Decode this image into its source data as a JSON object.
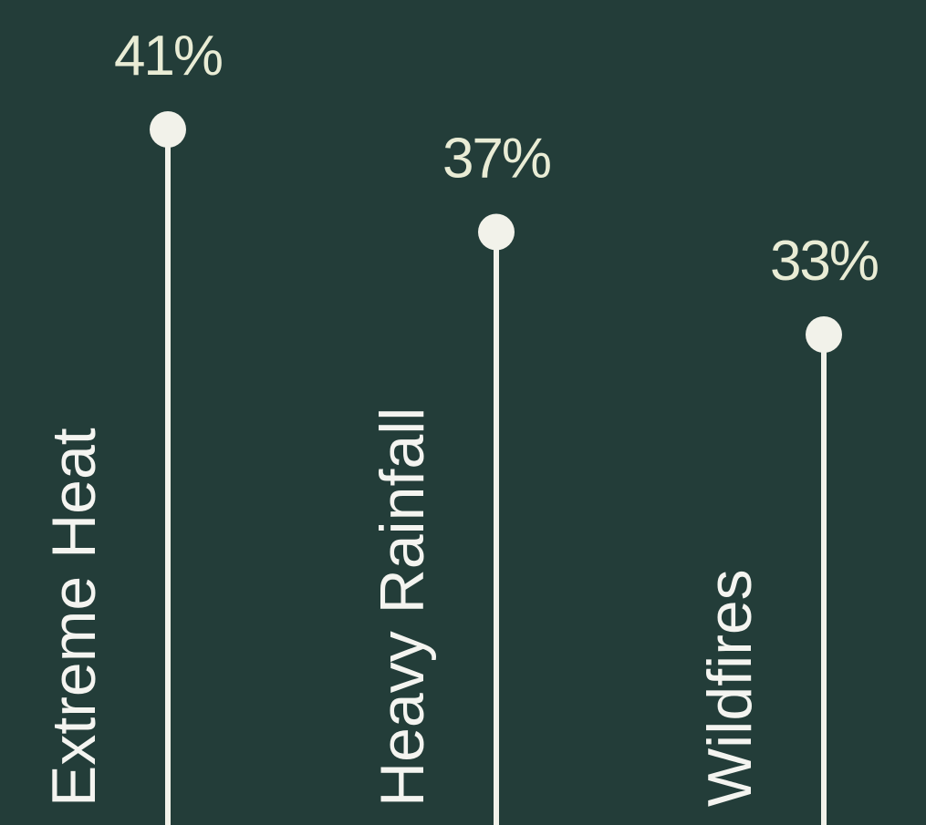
{
  "chart_data": {
    "type": "lollipop",
    "categories": [
      "Extreme Heat",
      "Heavy Rainfall",
      "Wildfires"
    ],
    "values": [
      41,
      37,
      33
    ],
    "value_labels": [
      "41%",
      "37%",
      "33%"
    ],
    "unit": "%",
    "colors": {
      "background": "#233d39",
      "stem": "#f2f2ea",
      "dot": "#f2f2ea",
      "value_text": "#e9ecd5",
      "category_text": "#f4f4f0"
    }
  }
}
